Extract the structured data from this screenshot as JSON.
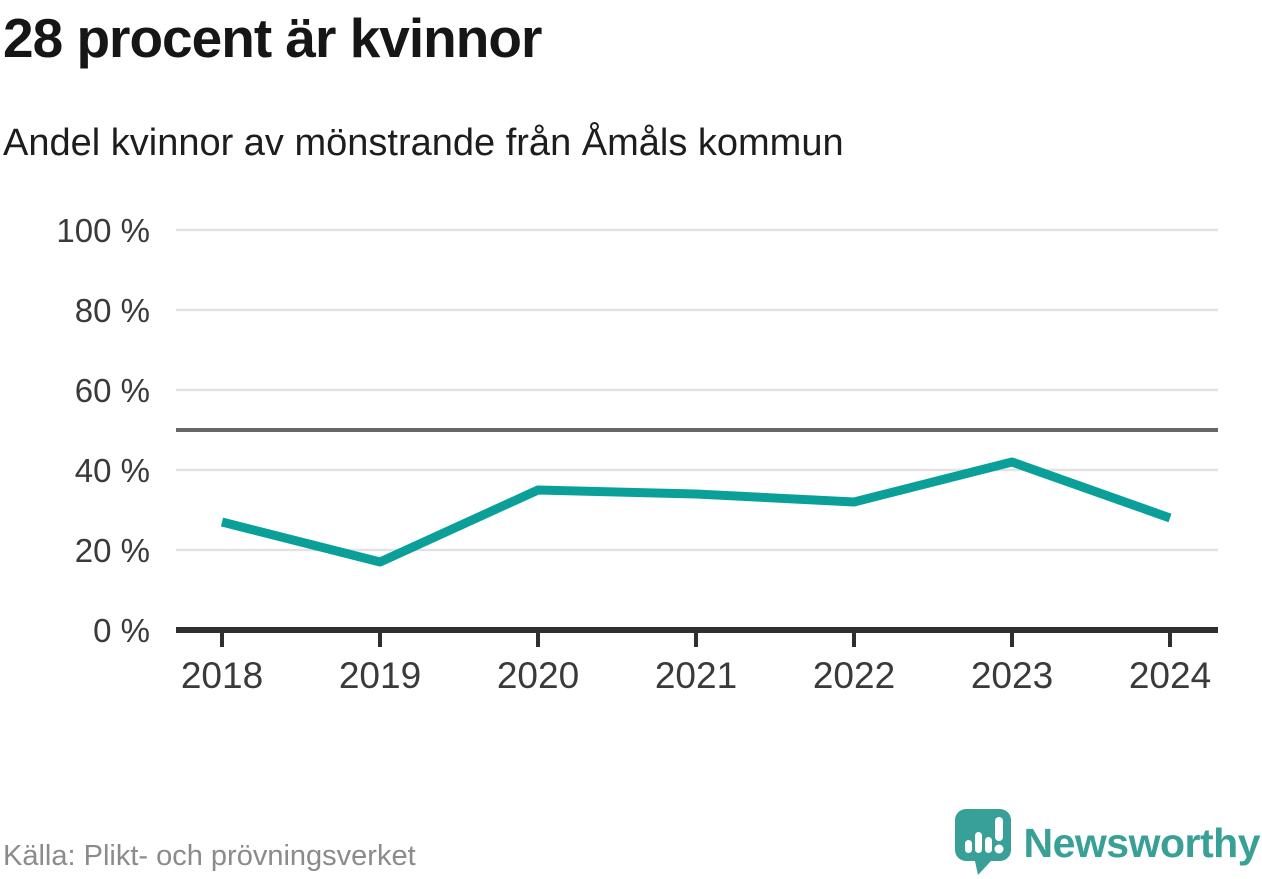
{
  "title": "28 procent är kvinnor",
  "subtitle": "Andel kvinnor av mönstrande från Åmåls kommun",
  "footer": {
    "source": "Källa: Plikt- och prövningsverket",
    "logo_text": "Newsworthy"
  },
  "colors": {
    "line": "#0aa099",
    "grid": "#e2e2e2",
    "reference_line": "#666666",
    "axis": "#2f2f2f",
    "tick_label": "#3a3a3a",
    "title": "#161616",
    "source_text": "#8b8b8b",
    "logo": "#38a096",
    "background": "#ffffff"
  },
  "chart_data": {
    "type": "line",
    "title": "28 procent är kvinnor",
    "subtitle": "Andel kvinnor av mönstrande från Åmåls kommun",
    "x": [
      2018,
      2019,
      2020,
      2021,
      2022,
      2023,
      2024
    ],
    "x_labels": [
      "2018",
      "2019",
      "2020",
      "2021",
      "2022",
      "2023",
      "2024"
    ],
    "values": [
      27,
      17,
      35,
      34,
      32,
      42,
      28
    ],
    "series_name": "Andel kvinnor av mönstrande",
    "unit": "%",
    "xlabel": "",
    "ylabel": "",
    "ylim": [
      0,
      100
    ],
    "yticks": [
      0,
      20,
      40,
      60,
      80,
      100
    ],
    "ytick_labels": [
      "0 %",
      "20 %",
      "40 %",
      "60 %",
      "80 %",
      "100 %"
    ],
    "reference_line": 50,
    "grid": true,
    "legend_position": "none",
    "source": "Källa: Plikt- och prövningsverket"
  }
}
